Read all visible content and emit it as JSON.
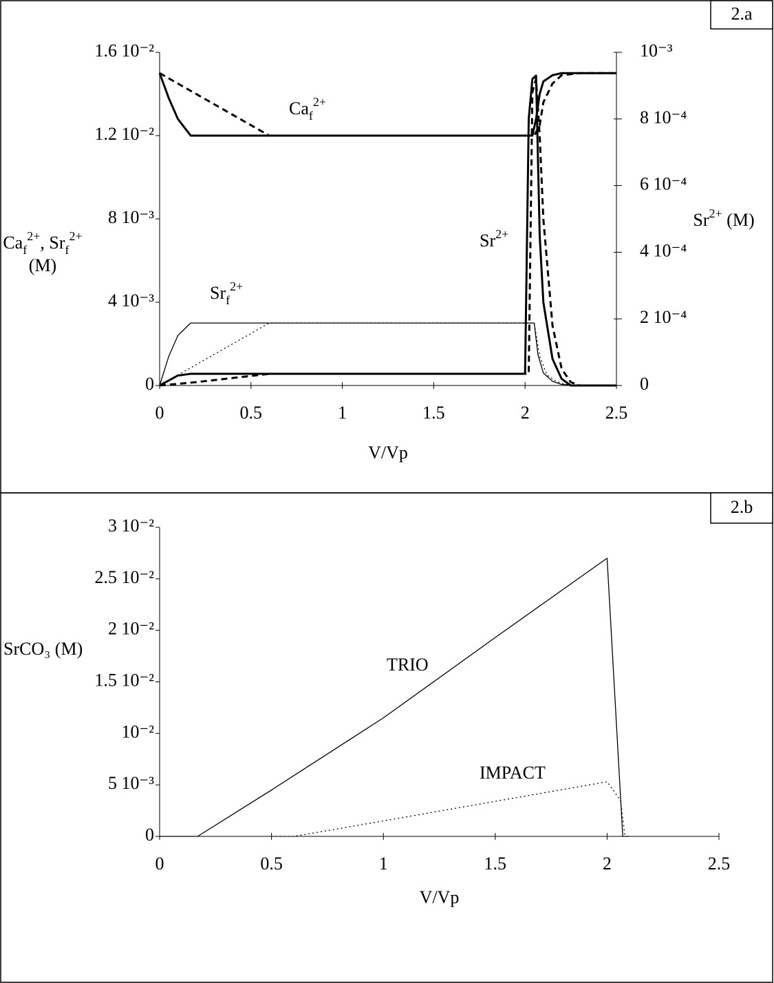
{
  "chart_data": [
    {
      "type": "line",
      "title": "2.a",
      "xlabel": "V/Vp",
      "ylabel": [
        [
          {
            "text": "Ca",
            "sub": "f",
            "sup": "2+"
          },
          {
            "text": ", Sr",
            "sub": "f",
            "sup": "2+"
          }
        ],
        [
          {
            "text": "(M)"
          }
        ]
      ],
      "y2label": [
        [
          {
            "text": "Sr",
            "sup": "2+"
          },
          {
            "text": " (M)"
          }
        ]
      ],
      "annotations": [
        [
          {
            "text": "Ca",
            "sub": "f",
            "sup": "2+"
          }
        ],
        [
          {
            "text": "Sr",
            "sup": "2+"
          }
        ],
        [
          {
            "text": "Sr",
            "sub": "f",
            "sup": "2+"
          }
        ]
      ],
      "xlim": [
        0,
        2.5
      ],
      "xticks": [
        0,
        0.5,
        1,
        1.5,
        2,
        2.5
      ],
      "ylim": [
        0,
        0.016
      ],
      "yticks": [
        0,
        {
          "value": 0.004,
          "label": "4 10⁻³"
        },
        {
          "value": 0.008,
          "label": "8 10⁻³"
        },
        {
          "value": 0.012,
          "label": "1.2 10⁻²"
        },
        {
          "value": 0.016,
          "label": "1.6 10⁻²"
        }
      ],
      "y2lim": [
        0,
        0.001
      ],
      "y2ticks": [
        0,
        {
          "value": 0.0002,
          "label": "2 10⁻⁴"
        },
        {
          "value": 0.0004,
          "label": "4 10⁻⁴"
        },
        {
          "value": 0.0006,
          "label": "6 10⁻⁴"
        },
        {
          "value": 0.0008,
          "label": "8 10⁻⁴"
        },
        {
          "value": 0.001,
          "label": "10⁻³"
        }
      ],
      "series": [
        {
          "color": "#000000",
          "dash": "solid",
          "weight": "thick",
          "x": [
            0,
            0.05,
            0.1,
            0.17,
            2.0,
            2.04,
            2.06,
            2.08,
            2.1,
            2.15,
            2.2,
            2.3,
            2.5
          ],
          "values": [
            0.015,
            0.0138,
            0.0128,
            0.012,
            0.012,
            0.012,
            0.0128,
            0.014,
            0.0146,
            0.0149,
            0.015,
            0.015,
            0.015
          ]
        },
        {
          "color": "#000000",
          "dash": "dashed",
          "weight": "thick",
          "x": [
            0,
            0.3,
            0.6,
            2.05,
            2.08,
            2.1,
            2.15,
            2.2,
            2.3,
            2.5
          ],
          "values": [
            0.015,
            0.0135,
            0.012,
            0.012,
            0.0125,
            0.0136,
            0.0145,
            0.0149,
            0.015,
            0.015
          ]
        },
        {
          "color": "#000000",
          "dash": "solid",
          "weight": "thin",
          "x": [
            0,
            0.05,
            0.1,
            0.17,
            2.05,
            2.07,
            2.1,
            2.15,
            2.2,
            2.3,
            2.5
          ],
          "values": [
            0,
            0.0014,
            0.0024,
            0.003,
            0.003,
            0.0015,
            0.0006,
            0.0002,
            5e-05,
            0,
            0
          ]
        },
        {
          "color": "#000000",
          "dash": "dotted",
          "weight": "thin",
          "x": [
            0,
            0.3,
            0.6,
            2.05,
            2.08,
            2.12,
            2.17,
            2.22,
            2.3,
            2.5
          ],
          "values": [
            0,
            0.0015,
            0.003,
            0.003,
            0.0014,
            0.0005,
            0.0002,
            5e-05,
            0,
            0
          ]
        },
        {
          "color": "#000000",
          "dash": "solid",
          "weight": "thick",
          "axis": "y2",
          "x": [
            0,
            0.1,
            0.17,
            2.0,
            2.02,
            2.04,
            2.06,
            2.08,
            2.1,
            2.15,
            2.2,
            2.25,
            2.3,
            2.5
          ],
          "values": [
            0,
            3e-05,
            3.5e-05,
            3.5e-05,
            0.0008,
            0.00092,
            0.00093,
            0.00045,
            0.00025,
            8e-05,
            2e-05,
            0,
            0,
            0
          ]
        },
        {
          "color": "#000000",
          "dash": "dashed",
          "weight": "thick",
          "axis": "y2",
          "x": [
            0,
            0.2,
            0.6,
            2.02,
            2.04,
            2.06,
            2.08,
            2.1,
            2.15,
            2.2,
            2.25,
            2.3,
            2.5
          ],
          "values": [
            0,
            1e-05,
            3.5e-05,
            3.5e-05,
            0.00088,
            0.00092,
            0.00075,
            0.0005,
            0.00018,
            5e-05,
            1e-05,
            0,
            0
          ]
        }
      ]
    },
    {
      "type": "line",
      "title": "2.b",
      "xlabel": "V/Vp",
      "ylabel": [
        [
          {
            "text": "SrCO₃ (M)"
          }
        ]
      ],
      "annotations": [
        [
          {
            "text": "TRIO"
          }
        ],
        [
          {
            "text": "IMPACT"
          }
        ]
      ],
      "xlim": [
        0,
        2.5
      ],
      "xticks": [
        0,
        0.5,
        1,
        1.5,
        2,
        2.5
      ],
      "ylim": [
        0,
        0.03
      ],
      "yticks": [
        0,
        {
          "value": 0.005,
          "label": "5 10⁻³"
        },
        {
          "value": 0.01,
          "label": "10⁻²"
        },
        {
          "value": 0.015,
          "label": "1.5 10⁻²"
        },
        {
          "value": 0.02,
          "label": "2 10⁻²"
        },
        {
          "value": 0.025,
          "label": "2.5 10⁻²"
        },
        {
          "value": 0.03,
          "label": "3 10⁻²"
        }
      ],
      "series": [
        {
          "color": "#000000",
          "dash": "solid",
          "weight": "thin",
          "x": [
            0,
            0.17,
            0.5,
            1.0,
            1.5,
            2.0,
            2.07,
            2.1
          ],
          "values": [
            0,
            0,
            0.0045,
            0.0115,
            0.0193,
            0.027,
            0,
            0
          ]
        },
        {
          "color": "#000000",
          "dash": "dotted",
          "weight": "thin",
          "x": [
            0.5,
            0.6,
            1.0,
            1.5,
            2.0,
            2.06,
            2.08
          ],
          "values": [
            0,
            0,
            0.0015,
            0.0034,
            0.0053,
            0.0035,
            0
          ]
        }
      ]
    }
  ]
}
